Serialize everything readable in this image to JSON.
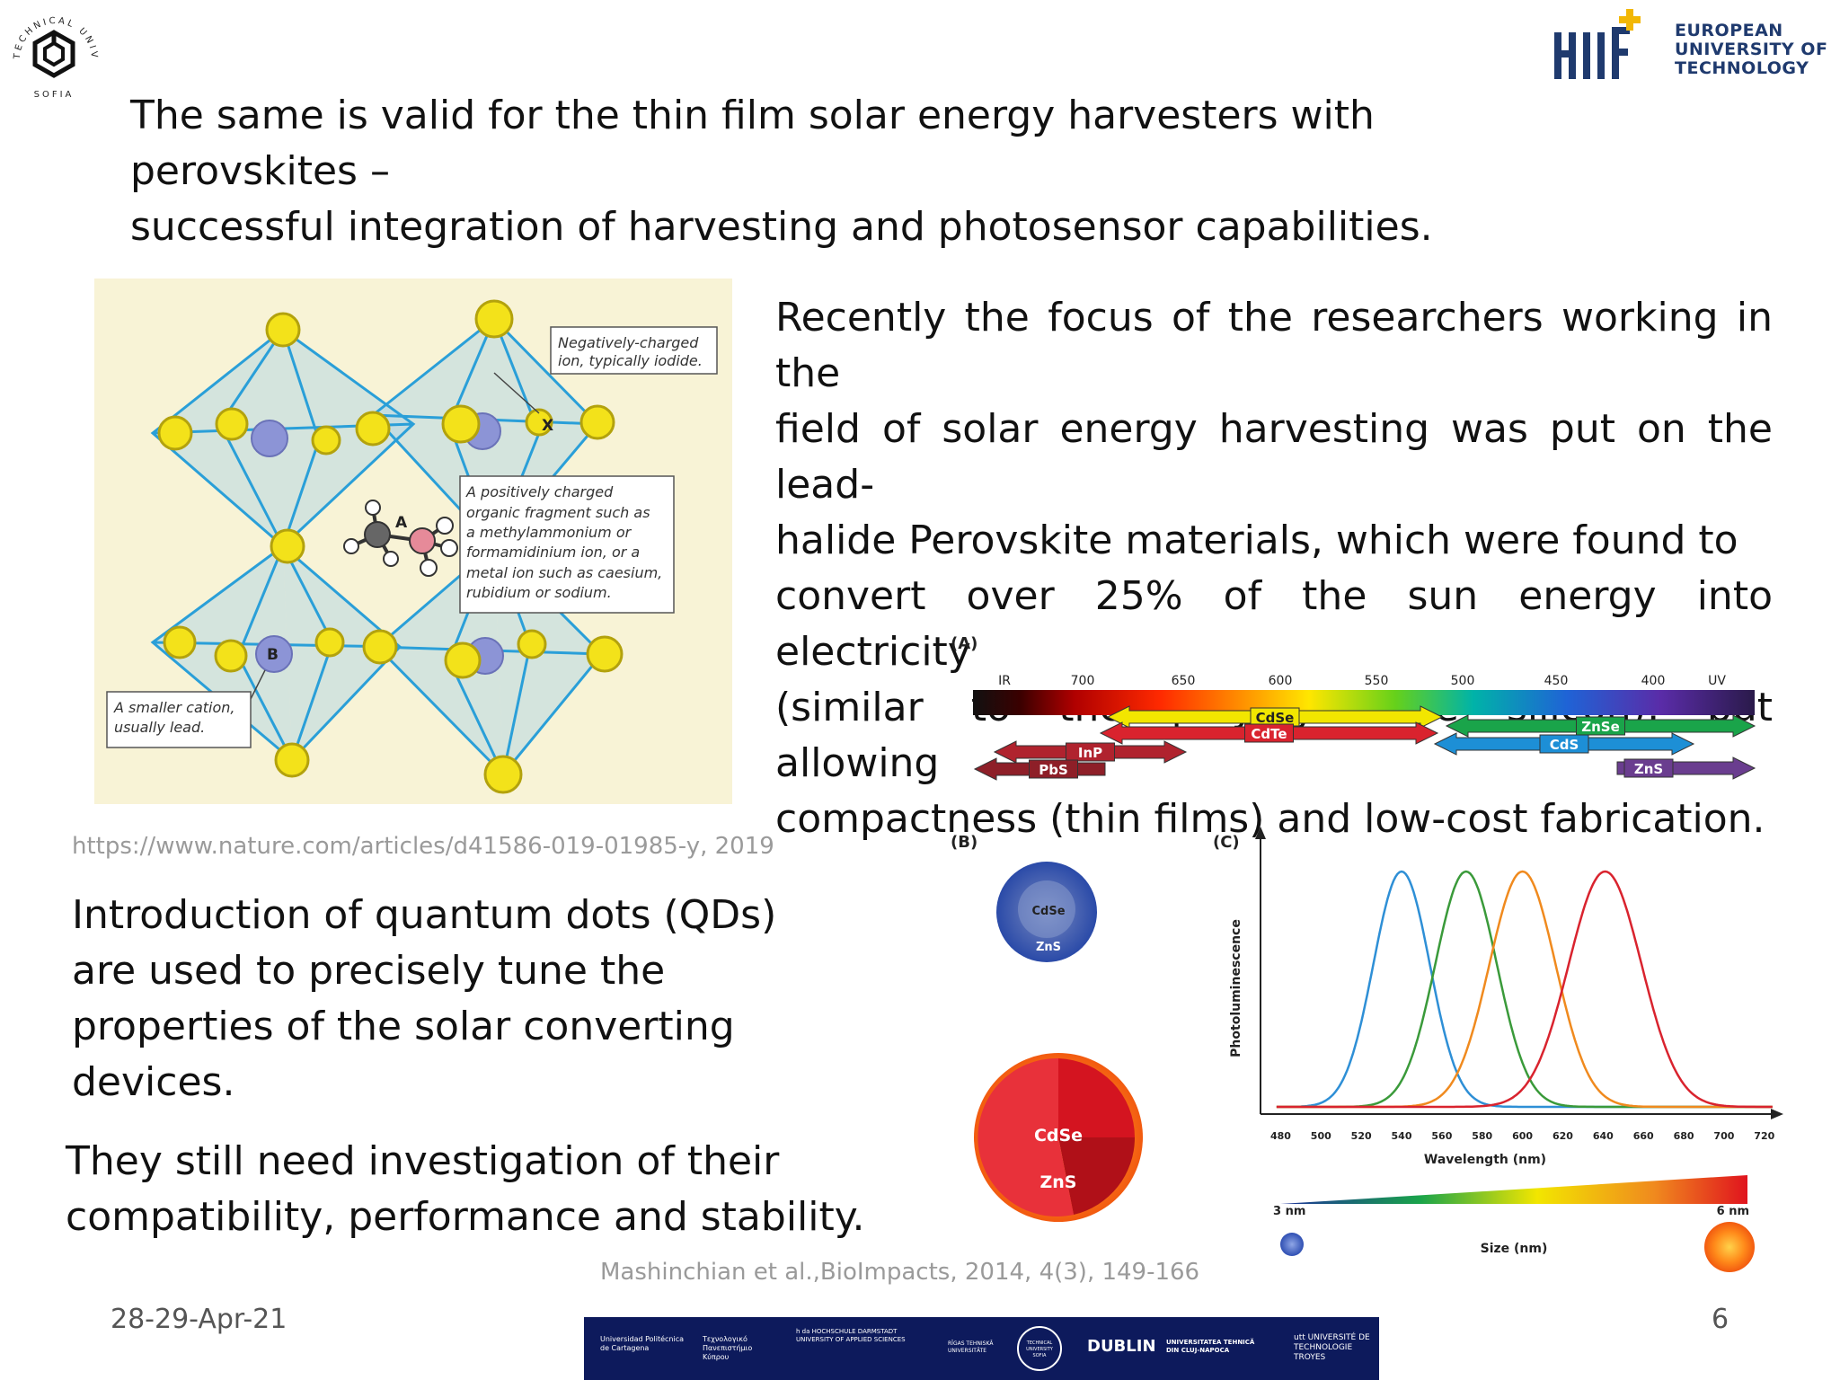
{
  "header": {
    "left_logo": {
      "icon": "tus-logo-icon",
      "ring_text": "TECHNICAL UNIVERSITY",
      "bottom_text": "SOFIA"
    },
    "right_logo": {
      "icon": "eut-logo-icon",
      "lines": [
        "EUROPEAN",
        "UNIVERSITY OF",
        "TECHNOLOGY"
      ]
    }
  },
  "headline": {
    "line1": "The same is valid for the thin film solar energy harvesters with perovskites –",
    "line2": "successful integration of harvesting and photosensor capabilities."
  },
  "perovskite_figure": {
    "label_x": "X",
    "label_a": "A",
    "label_b": "B",
    "callout_x": [
      "Negatively-charged",
      "ion, typically iodide."
    ],
    "callout_a": [
      "A positively charged",
      "organic fragment such as",
      "a methylammonium or",
      "formamidinium ion, or a",
      "metal ion such as caesium,",
      "rubidium or sodium."
    ],
    "callout_b": [
      "A smaller cation,",
      "usually lead."
    ],
    "citation": "https://www.nature.com/articles/d41586-019-01985-y, 2019"
  },
  "right_paragraph": {
    "lines": [
      "Recently the focus of the researchers working in the",
      "field of solar energy harvesting was put on the lead-",
      "halide Perovskite materials, which were found to",
      "convert over 25% of the sun energy into electricity",
      "(similar to the polycrystalline silicon), but allowing",
      "compactness (thin films) and low-cost fabrication."
    ]
  },
  "left_paragraph_1": {
    "lines": [
      "Introduction of quantum dots (QDs)",
      "are used to precisely tune the",
      "properties of the solar converting",
      "devices."
    ]
  },
  "left_paragraph_2": {
    "lines": [
      "They still need investigation of their",
      "compatibility, performance and stability."
    ]
  },
  "qd_figure": {
    "panel_a": "(A)",
    "panel_b": "(B)",
    "panel_c": "(C)",
    "spectrum_ticks": [
      "IR",
      "700",
      "650",
      "600",
      "550",
      "500",
      "450",
      "400",
      "UV"
    ],
    "arrows": [
      {
        "label": "CdSe",
        "color": "#f2e600"
      },
      {
        "label": "CdTe",
        "color": "#d9232e"
      },
      {
        "label": "ZnSe",
        "color": "#1aa44a"
      },
      {
        "label": "CdS",
        "color": "#1d8fd6"
      },
      {
        "label": "InP",
        "color": "#b0232e"
      },
      {
        "label": "PbS",
        "color": "#8e1f28"
      },
      {
        "label": "ZnS",
        "color": "#6a3d8f"
      }
    ],
    "dot_small": {
      "core": "CdSe",
      "shell": "ZnS"
    },
    "dot_large": {
      "core": "CdSe",
      "shell": "ZnS"
    },
    "citation": "Mashinchian et al.,BioImpacts, 2014, 4(3), 149-166"
  },
  "chart_data": {
    "type": "line",
    "title": "",
    "xlabel": "Wavelength (nm)",
    "ylabel": "Photoluminescence",
    "xlim": [
      470,
      725
    ],
    "x_ticks": [
      "480",
      "500",
      "520",
      "540",
      "560",
      "580",
      "600",
      "620",
      "640",
      "660",
      "680",
      "700",
      "720"
    ],
    "series": [
      {
        "peak_nm": 540,
        "color": "#2e8fd6"
      },
      {
        "peak_nm": 572,
        "color": "#3a9a3a"
      },
      {
        "peak_nm": 600,
        "color": "#f08a1e"
      },
      {
        "peak_nm": 641,
        "color": "#d9232e"
      }
    ],
    "size_bar": {
      "label_small": "3 nm",
      "label_large": "6 nm",
      "caption": "Size (nm)"
    }
  },
  "footer": {
    "date": "28-29-Apr-21",
    "page_number": "6",
    "partners": [
      "Universidad Politécnica de Cartagena",
      "Τεχνολογικό Πανεπιστήμιο Κύπρου",
      "h da HOCHSCHULE DARMSTADT UNIVERSITY OF APPLIED SCIENCES",
      "RĪGAS TEHNISKĀ UNIVERSITĀTE",
      "TECHNICAL UNIVERSITY SOFIA",
      "DUBLIN",
      "UNIVERSITATEA TEHNICĂ DIN CLUJ-NAPOCA",
      "utt UNIVERSITÉ DE TECHNOLOGIE TROYES"
    ]
  }
}
